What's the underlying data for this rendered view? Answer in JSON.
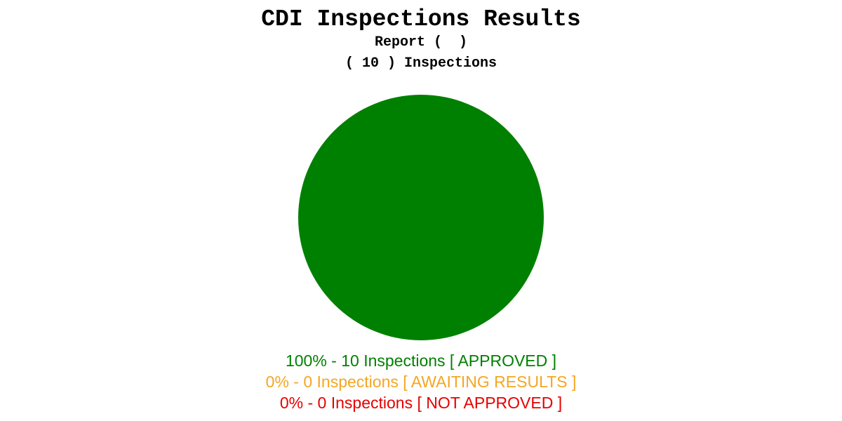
{
  "chart_data": {
    "type": "pie",
    "title": "CDI Inspections Results",
    "subtitle": "Report (  )",
    "subtitle2": "( 10 ) Inspections",
    "total": 10,
    "slices": [
      {
        "label": "100% - 10 Inspections [ APPROVED ]",
        "value": 10,
        "percent": 100,
        "status": "APPROVED",
        "color": "#008000"
      },
      {
        "label": "0% - 0 Inspections [ AWAITING RESULTS ]",
        "value": 0,
        "percent": 0,
        "status": "AWAITING RESULTS",
        "color": "#f5a623"
      },
      {
        "label": "0% - 0 Inspections [ NOT APPROVED ]",
        "value": 0,
        "percent": 0,
        "status": "NOT APPROVED",
        "color": "#e60000"
      }
    ],
    "legend_placement": "bottom"
  }
}
